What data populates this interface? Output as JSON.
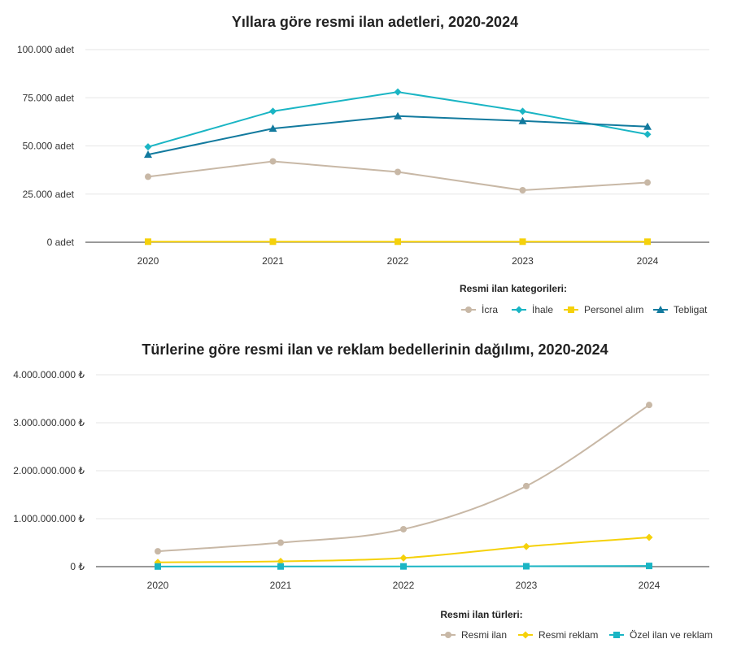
{
  "chart_data": [
    {
      "type": "line",
      "title": "Yıllara göre resmi ilan adetleri, 2020-2024",
      "categories": [
        "2020",
        "2021",
        "2022",
        "2023",
        "2024"
      ],
      "ylim": [
        0,
        100000
      ],
      "y_ticks": [
        "0 adet",
        "25.000 adet",
        "50.000 adet",
        "75.000 adet",
        "100.000 adet"
      ],
      "grid": true,
      "legend_title": "Resmi ilan kategorileri:",
      "legend_position": "bottom-right",
      "series": [
        {
          "name": "İcra",
          "color": "#c8b8a6",
          "marker": "circle",
          "values": [
            34000,
            42000,
            36500,
            27000,
            31000
          ]
        },
        {
          "name": "İhale",
          "color": "#1ab5c4",
          "marker": "diamond",
          "values": [
            49500,
            68000,
            78000,
            68000,
            56000
          ]
        },
        {
          "name": "Personel alım",
          "color": "#f5d10a",
          "marker": "square",
          "values": [
            300,
            300,
            300,
            300,
            300
          ]
        },
        {
          "name": "Tebligat",
          "color": "#127a9e",
          "marker": "triangle",
          "values": [
            45500,
            59000,
            65500,
            63000,
            60000
          ]
        }
      ]
    },
    {
      "type": "line",
      "title": "Türlerine göre resmi ilan ve reklam bedellerinin dağılımı, 2020-2024",
      "categories": [
        "2020",
        "2021",
        "2022",
        "2023",
        "2024"
      ],
      "ylim": [
        0,
        4000000000
      ],
      "y_ticks": [
        "0 ₺",
        "1.000.000.000 ₺",
        "2.000.000.000 ₺",
        "3.000.000.000 ₺",
        "4.000.000.000 ₺"
      ],
      "grid": true,
      "legend_title": "Resmi ilan türleri:",
      "legend_position": "bottom-right",
      "series": [
        {
          "name": "Resmi ilan",
          "color": "#c8b8a6",
          "marker": "circle",
          "values": [
            320000000,
            500000000,
            780000000,
            1680000000,
            3370000000
          ]
        },
        {
          "name": "Resmi reklam",
          "color": "#f5d10a",
          "marker": "diamond",
          "values": [
            90000000,
            110000000,
            180000000,
            420000000,
            610000000
          ]
        },
        {
          "name": "Özel ilan ve reklam",
          "color": "#1ab5c4",
          "marker": "square",
          "values": [
            3000000,
            4000000,
            5000000,
            8000000,
            15000000
          ]
        }
      ]
    }
  ]
}
